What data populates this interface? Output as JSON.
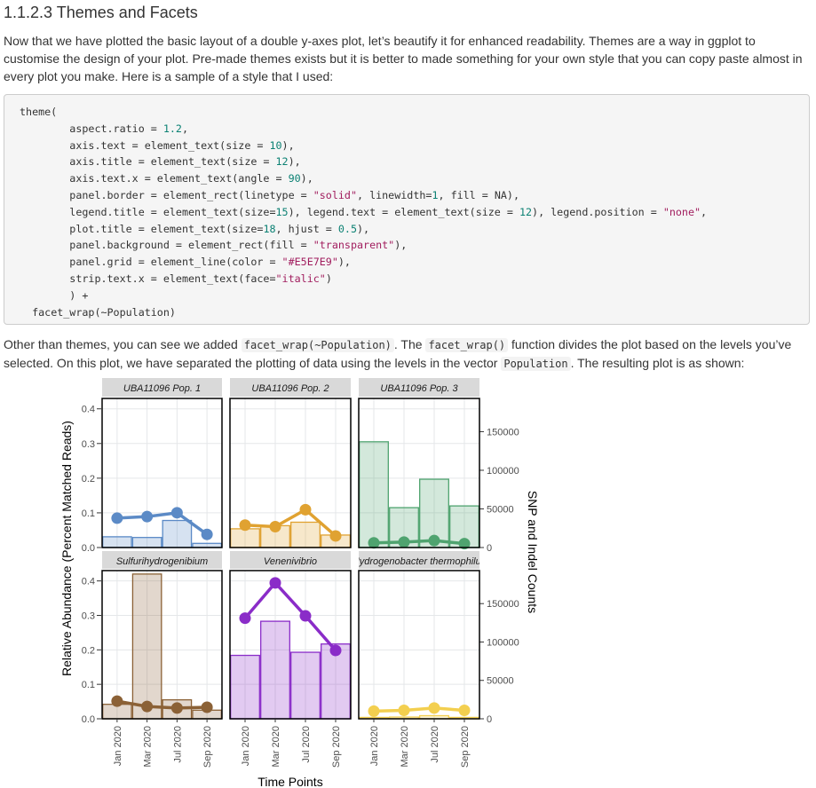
{
  "section": {
    "heading": "1.1.2.3 Themes and Facets",
    "intro": "Now that we have plotted the basic layout of a double y-axes plot, let’s beautify it for enhanced readability. Themes are a way in ggplot to customise the design of your plot. Pre-made themes exists but it is better to made something for your own style that you can copy paste almost in every plot you make. Here is a sample of a style that I used:",
    "outro_1": "Other than themes, you can see we added ",
    "outro_code_1": "facet_wrap(~Population)",
    "outro_2": ". The ",
    "outro_code_2": "facet_wrap()",
    "outro_3": " function divides the plot based on the levels you’ve selected. On this plot, we have separated the plotting of data using the levels in the vector ",
    "outro_code_3": "Population",
    "outro_4": ". The resulting plot is as shown:"
  },
  "code": {
    "theme_open": "theme(",
    "aspect_key": "aspect.ratio = ",
    "aspect_val": "1.2",
    "axis_text_key": "axis.text = element_text(size = ",
    "axis_text_val": "10",
    "axis_title_key": "axis.title = element_text(size = ",
    "axis_title_val": "12",
    "axis_text_x_key": "axis.text.x = element_text(angle = ",
    "axis_text_x_val": "90",
    "panel_border_key": "panel.border = element_rect(linetype = ",
    "panel_border_str": "\"solid\"",
    "panel_border_mid": ", linewidth=",
    "panel_border_num": "1",
    "panel_border_end": ", fill = NA),",
    "legend_a": "legend.title = element_text(size=",
    "legend_a_num": "15",
    "legend_b": "), legend.text = element_text(size = ",
    "legend_b_num": "12",
    "legend_c": "), legend.position = ",
    "legend_c_str": "\"none\"",
    "legend_d": ",",
    "plot_title_a": "plot.title = element_text(size=",
    "plot_title_num1": "18",
    "plot_title_b": ", hjust = ",
    "plot_title_num2": "0.5",
    "plot_title_c": "),",
    "panel_bg_key": "panel.background = element_rect(fill = ",
    "panel_bg_str": "\"transparent\"",
    "panel_bg_end": "),",
    "panel_grid_key": "panel.grid = element_line(color = ",
    "panel_grid_str": "\"#E5E7E9\"",
    "panel_grid_end": "),",
    "strip_key": "strip.text.x = element_text(face=",
    "strip_str": "\"italic\"",
    "strip_end": ")",
    "close": ") +",
    "facet": "facet_wrap(~Population)"
  },
  "chart_data": {
    "type": "bar+line (dual y-axes, faceted)",
    "xlabel": "Time Points",
    "ylabel_left": "Relative Abundance (Percent Matched Reads)",
    "ylabel_right": "SNP and Indel Counts",
    "x_ticks": [
      "Jan 2020",
      "Mar 2020",
      "Jul 2020",
      "Sep 2020"
    ],
    "left_ticks": [
      "0.0",
      "0.1",
      "0.2",
      "0.3",
      "0.4"
    ],
    "left_range": [
      0,
      0.43
    ],
    "right_ticks": [
      "0",
      "50000",
      "100000",
      "150000"
    ],
    "right_range": [
      0,
      193000
    ],
    "grid": true,
    "legend": "none",
    "panels": [
      {
        "strip": "UBA11096 Pop. 1",
        "color": "#5b8ac6",
        "bars": [
          0.031,
          0.029,
          0.078,
          0.012
        ],
        "snp": [
          38000,
          40000,
          45000,
          17000
        ]
      },
      {
        "strip": "UBA11096 Pop. 2",
        "color": "#e0a231",
        "bars": [
          0.054,
          0.063,
          0.073,
          0.036
        ],
        "snp": [
          29000,
          27000,
          49000,
          15000
        ]
      },
      {
        "strip": "UBA11096 Pop. 3",
        "color": "#4fa36f",
        "bars": [
          0.305,
          0.115,
          0.197,
          0.12
        ],
        "snp": [
          6000,
          7000,
          9000,
          5000
        ]
      },
      {
        "strip": "Sulfurihydrogenibium",
        "color": "#8b6136",
        "bars": [
          0.042,
          0.42,
          0.055,
          0.025
        ],
        "snp": [
          23000,
          16000,
          14000,
          15000
        ]
      },
      {
        "strip": "Venenivibrio",
        "color": "#8a2cc8",
        "bars": [
          0.184,
          0.283,
          0.193,
          0.217
        ],
        "snp": [
          131000,
          177000,
          134000,
          89000
        ]
      },
      {
        "strip": "Hydrogenobacter thermophilus",
        "color": "#f3cf4f",
        "bars": [
          0.004,
          0.005,
          0.009,
          0.004
        ],
        "snp": [
          10000,
          11000,
          14000,
          11000
        ]
      }
    ]
  }
}
